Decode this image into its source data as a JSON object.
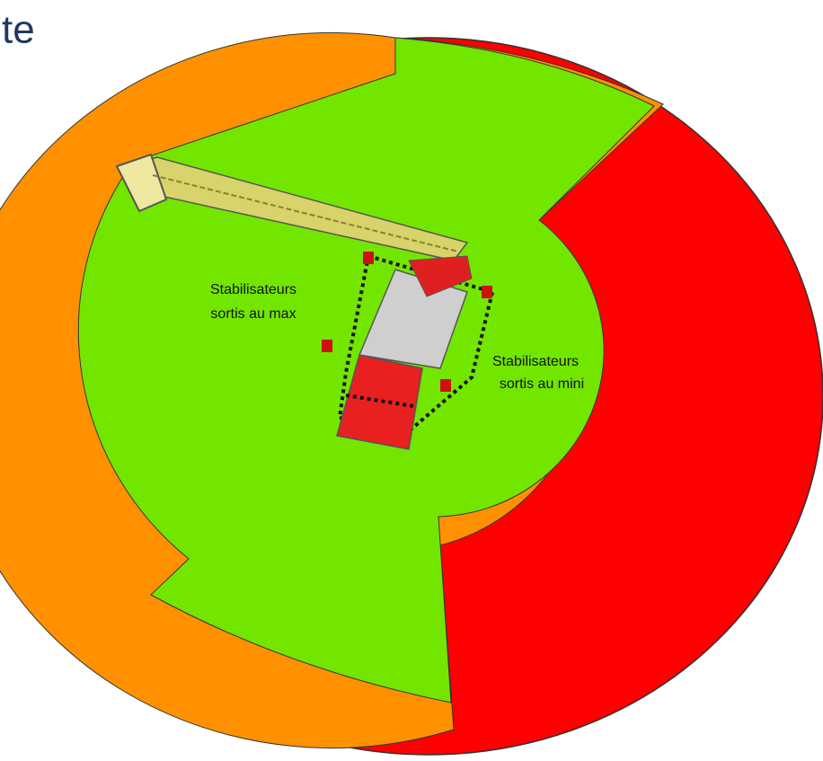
{
  "title": "te",
  "labels": [
    {
      "line1": "Stabilisateurs",
      "line2": "sortis au max"
    },
    {
      "line1": "Stabilisateurs",
      "line2": "sortis au mini"
    }
  ]
}
